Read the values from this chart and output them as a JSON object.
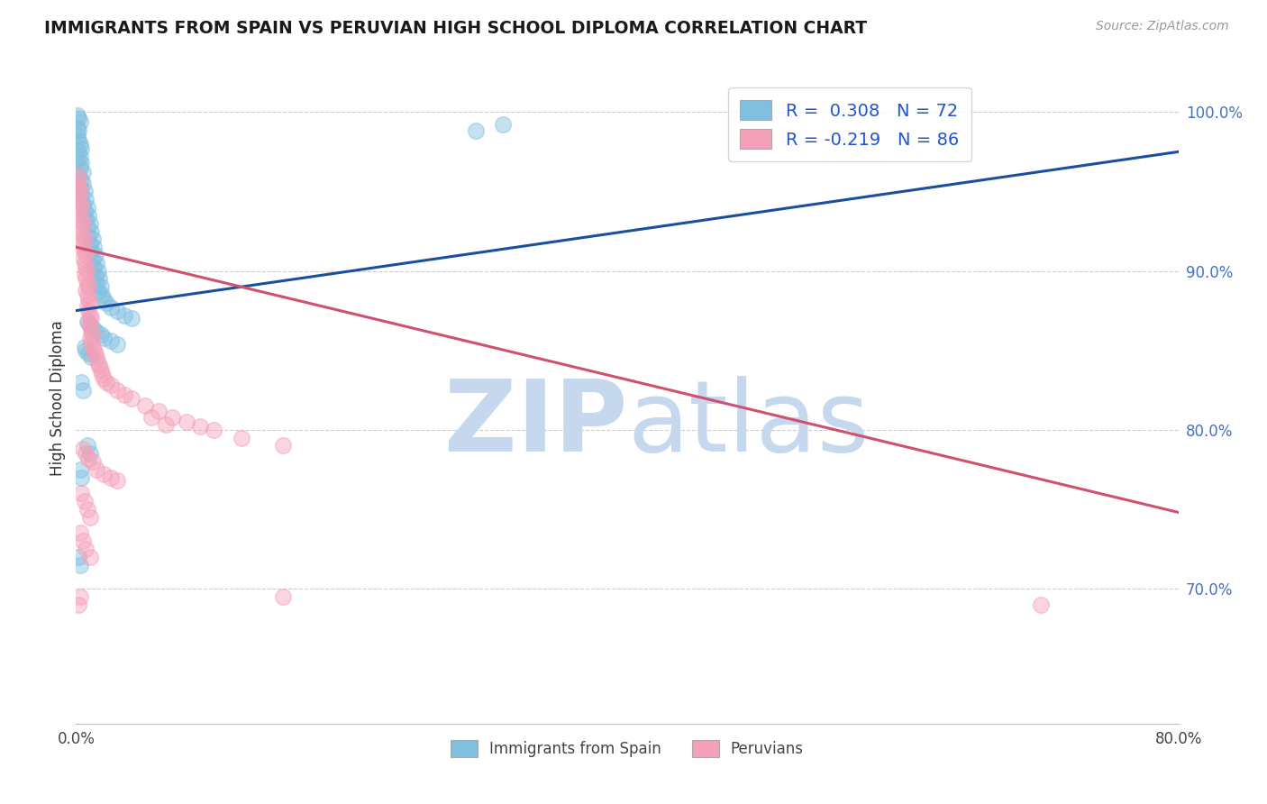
{
  "title": "IMMIGRANTS FROM SPAIN VS PERUVIAN HIGH SCHOOL DIPLOMA CORRELATION CHART",
  "source": "Source: ZipAtlas.com",
  "ylabel": "High School Diploma",
  "legend_label1": "Immigrants from Spain",
  "legend_label2": "Peruvians",
  "blue_color": "#7fbfdf",
  "pink_color": "#f4a0b8",
  "trendline_blue": "#1a4fa0",
  "trendline_pink": "#d05070",
  "watermark_zip_color": "#c5d8ee",
  "watermark_atlas_color": "#c5d8ee",
  "xlim": [
    0.0,
    0.8
  ],
  "ylim": [
    0.615,
    1.025
  ],
  "blue_trend_x": [
    0.0,
    0.8
  ],
  "blue_trend_y": [
    0.875,
    0.975
  ],
  "pink_trend_x": [
    0.0,
    0.8
  ],
  "pink_trend_y": [
    0.915,
    0.748
  ],
  "blue_scatter": [
    [
      0.001,
      0.998
    ],
    [
      0.002,
      0.996
    ],
    [
      0.003,
      0.994
    ],
    [
      0.001,
      0.99
    ],
    [
      0.002,
      0.988
    ],
    [
      0.001,
      0.985
    ],
    [
      0.002,
      0.982
    ],
    [
      0.003,
      0.98
    ],
    [
      0.004,
      0.977
    ],
    [
      0.002,
      0.975
    ],
    [
      0.003,
      0.972
    ],
    [
      0.001,
      0.97
    ],
    [
      0.004,
      0.968
    ],
    [
      0.003,
      0.965
    ],
    [
      0.005,
      0.962
    ],
    [
      0.002,
      0.96
    ],
    [
      0.004,
      0.957
    ],
    [
      0.005,
      0.955
    ],
    [
      0.003,
      0.952
    ],
    [
      0.006,
      0.95
    ],
    [
      0.004,
      0.948
    ],
    [
      0.007,
      0.945
    ],
    [
      0.005,
      0.942
    ],
    [
      0.008,
      0.94
    ],
    [
      0.006,
      0.938
    ],
    [
      0.009,
      0.935
    ],
    [
      0.007,
      0.933
    ],
    [
      0.01,
      0.93
    ],
    [
      0.008,
      0.928
    ],
    [
      0.011,
      0.925
    ],
    [
      0.009,
      0.922
    ],
    [
      0.012,
      0.92
    ],
    [
      0.01,
      0.917
    ],
    [
      0.013,
      0.915
    ],
    [
      0.011,
      0.912
    ],
    [
      0.014,
      0.91
    ],
    [
      0.012,
      0.907
    ],
    [
      0.015,
      0.905
    ],
    [
      0.013,
      0.902
    ],
    [
      0.016,
      0.9
    ],
    [
      0.014,
      0.897
    ],
    [
      0.017,
      0.895
    ],
    [
      0.015,
      0.892
    ],
    [
      0.018,
      0.89
    ],
    [
      0.016,
      0.887
    ],
    [
      0.019,
      0.885
    ],
    [
      0.02,
      0.882
    ],
    [
      0.022,
      0.88
    ],
    [
      0.025,
      0.877
    ],
    [
      0.03,
      0.875
    ],
    [
      0.035,
      0.872
    ],
    [
      0.04,
      0.87
    ],
    [
      0.008,
      0.868
    ],
    [
      0.01,
      0.866
    ],
    [
      0.012,
      0.864
    ],
    [
      0.015,
      0.862
    ],
    [
      0.018,
      0.86
    ],
    [
      0.02,
      0.858
    ],
    [
      0.025,
      0.856
    ],
    [
      0.03,
      0.854
    ],
    [
      0.006,
      0.852
    ],
    [
      0.007,
      0.85
    ],
    [
      0.009,
      0.848
    ],
    [
      0.011,
      0.846
    ],
    [
      0.004,
      0.83
    ],
    [
      0.005,
      0.825
    ],
    [
      0.008,
      0.79
    ],
    [
      0.01,
      0.785
    ],
    [
      0.003,
      0.775
    ],
    [
      0.004,
      0.77
    ],
    [
      0.002,
      0.72
    ],
    [
      0.003,
      0.715
    ],
    [
      0.29,
      0.988
    ],
    [
      0.31,
      0.992
    ]
  ],
  "pink_scatter": [
    [
      0.001,
      0.96
    ],
    [
      0.002,
      0.958
    ],
    [
      0.001,
      0.955
    ],
    [
      0.002,
      0.952
    ],
    [
      0.003,
      0.95
    ],
    [
      0.001,
      0.948
    ],
    [
      0.002,
      0.945
    ],
    [
      0.003,
      0.942
    ],
    [
      0.004,
      0.94
    ],
    [
      0.002,
      0.938
    ],
    [
      0.003,
      0.935
    ],
    [
      0.004,
      0.932
    ],
    [
      0.005,
      0.93
    ],
    [
      0.003,
      0.928
    ],
    [
      0.004,
      0.925
    ],
    [
      0.005,
      0.922
    ],
    [
      0.006,
      0.92
    ],
    [
      0.004,
      0.918
    ],
    [
      0.005,
      0.915
    ],
    [
      0.006,
      0.912
    ],
    [
      0.007,
      0.91
    ],
    [
      0.005,
      0.908
    ],
    [
      0.006,
      0.905
    ],
    [
      0.007,
      0.902
    ],
    [
      0.008,
      0.9
    ],
    [
      0.006,
      0.898
    ],
    [
      0.007,
      0.895
    ],
    [
      0.008,
      0.892
    ],
    [
      0.009,
      0.89
    ],
    [
      0.007,
      0.888
    ],
    [
      0.008,
      0.885
    ],
    [
      0.009,
      0.882
    ],
    [
      0.01,
      0.88
    ],
    [
      0.008,
      0.878
    ],
    [
      0.009,
      0.875
    ],
    [
      0.01,
      0.872
    ],
    [
      0.011,
      0.87
    ],
    [
      0.009,
      0.868
    ],
    [
      0.01,
      0.865
    ],
    [
      0.011,
      0.862
    ],
    [
      0.012,
      0.86
    ],
    [
      0.01,
      0.858
    ],
    [
      0.011,
      0.855
    ],
    [
      0.012,
      0.852
    ],
    [
      0.013,
      0.85
    ],
    [
      0.014,
      0.848
    ],
    [
      0.015,
      0.845
    ],
    [
      0.016,
      0.842
    ],
    [
      0.017,
      0.84
    ],
    [
      0.018,
      0.838
    ],
    [
      0.019,
      0.835
    ],
    [
      0.02,
      0.832
    ],
    [
      0.022,
      0.83
    ],
    [
      0.025,
      0.828
    ],
    [
      0.03,
      0.825
    ],
    [
      0.035,
      0.822
    ],
    [
      0.04,
      0.82
    ],
    [
      0.05,
      0.815
    ],
    [
      0.06,
      0.812
    ],
    [
      0.07,
      0.808
    ],
    [
      0.08,
      0.805
    ],
    [
      0.09,
      0.802
    ],
    [
      0.1,
      0.8
    ],
    [
      0.12,
      0.795
    ],
    [
      0.15,
      0.79
    ],
    [
      0.055,
      0.808
    ],
    [
      0.065,
      0.803
    ],
    [
      0.005,
      0.788
    ],
    [
      0.007,
      0.785
    ],
    [
      0.009,
      0.782
    ],
    [
      0.012,
      0.78
    ],
    [
      0.015,
      0.775
    ],
    [
      0.02,
      0.772
    ],
    [
      0.025,
      0.77
    ],
    [
      0.03,
      0.768
    ],
    [
      0.004,
      0.76
    ],
    [
      0.006,
      0.755
    ],
    [
      0.008,
      0.75
    ],
    [
      0.01,
      0.745
    ],
    [
      0.003,
      0.735
    ],
    [
      0.005,
      0.73
    ],
    [
      0.007,
      0.725
    ],
    [
      0.01,
      0.72
    ],
    [
      0.002,
      0.69
    ],
    [
      0.003,
      0.695
    ],
    [
      0.15,
      0.695
    ],
    [
      0.7,
      0.69
    ]
  ]
}
